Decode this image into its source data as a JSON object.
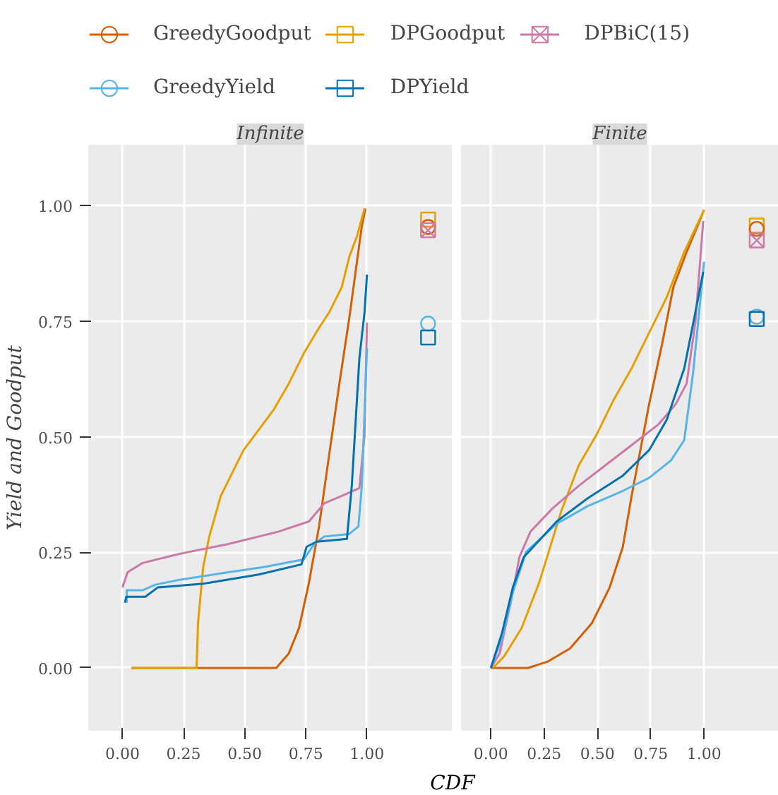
{
  "chart_data": [
    {
      "type": "line",
      "title": "Infinite",
      "xlabel": "CDF",
      "ylabel": "Yield and Goodput",
      "xlim": [
        -0.14,
        1.35
      ],
      "ylim": [
        -0.136,
        1.132
      ],
      "xticks": [
        {
          "value": 0,
          "label": "0.00"
        },
        {
          "value": 0.25,
          "label": "0.25"
        },
        {
          "value": 0.5,
          "label": "0.50"
        },
        {
          "value": 0.75,
          "label": "0.75"
        },
        {
          "value": 1,
          "label": "1.00"
        }
      ],
      "yticks": [
        {
          "value": 0,
          "label": "0.00"
        },
        0.25,
        {
          "value": 0.5,
          "label": "0.50"
        },
        0.75,
        {
          "value": 1,
          "label": "1.00"
        }
      ],
      "grid": true,
      "legend": "top",
      "line_style": "solid",
      "series": [
        {
          "name": "GreedyGoodput",
          "color": "#d55e00",
          "x": [
            0.037,
            0.629,
            0.68,
            0.722,
            0.763,
            0.804,
            0.845,
            0.887,
            0.928,
            0.959,
            0.979,
            0.994
          ],
          "values": [
            0,
            0,
            0.031,
            0.086,
            0.185,
            0.306,
            0.46,
            0.615,
            0.758,
            0.879,
            0.956,
            0.994
          ]
        },
        {
          "name": "DPGoodput",
          "color": "#e69f00",
          "x": [
            0.037,
            0.303,
            0.309,
            0.33,
            0.355,
            0.402,
            0.433,
            0.495,
            0.557,
            0.619,
            0.68,
            0.742,
            0.804,
            0.845,
            0.897,
            0.928,
            0.959,
            0.99
          ],
          "values": [
            0,
            0,
            0.097,
            0.218,
            0.284,
            0.372,
            0.405,
            0.471,
            0.515,
            0.559,
            0.615,
            0.681,
            0.736,
            0.769,
            0.824,
            0.89,
            0.934,
            0.994
          ]
        },
        {
          "name": "DPBiC(15)",
          "color": "#cc79a7",
          "x": [
            0,
            0.021,
            0.082,
            0.227,
            0.433,
            0.639,
            0.763,
            0.825,
            0.887,
            0.969,
            0.99,
            1.0
          ],
          "values": [
            0.174,
            0.207,
            0.227,
            0.246,
            0.268,
            0.295,
            0.317,
            0.356,
            0.37,
            0.389,
            0.504,
            0.747
          ]
        },
        {
          "name": "GreedyYield",
          "color": "#56b4e9",
          "x": [
            0.017,
            0.017,
            0.082,
            0.134,
            0.227,
            0.433,
            0.577,
            0.742,
            0.784,
            0.825,
            0.928,
            0.965,
            0.979,
            1.0
          ],
          "values": [
            0.141,
            0.168,
            0.168,
            0.18,
            0.19,
            0.207,
            0.218,
            0.235,
            0.268,
            0.284,
            0.29,
            0.306,
            0.394,
            0.692
          ]
        },
        {
          "name": "DPYield",
          "color": "#0072b2",
          "x": [
            0.01,
            0.016,
            0.093,
            0.144,
            0.33,
            0.557,
            0.732,
            0.753,
            0.794,
            0.918,
            0.938,
            0.969,
            0.99,
            1.0
          ],
          "values": [
            0.141,
            0.154,
            0.154,
            0.174,
            0.182,
            0.202,
            0.224,
            0.262,
            0.273,
            0.279,
            0.394,
            0.67,
            0.769,
            0.851
          ]
        },
        {
          "type": "scatter",
          "color": "#d55e00",
          "marker": "circle",
          "x": [
            1.25
          ],
          "values": [
            0.954
          ]
        },
        {
          "type": "scatter",
          "color": "#e69f00",
          "marker": "square",
          "x": [
            1.25
          ],
          "values": [
            0.97
          ]
        },
        {
          "type": "scatter",
          "color": "#cc79a7",
          "marker": "cross",
          "x": [
            1.25
          ],
          "values": [
            0.947
          ]
        },
        {
          "type": "scatter",
          "color": "#56b4e9",
          "marker": "circle",
          "x": [
            1.25
          ],
          "values": [
            0.745
          ]
        },
        {
          "type": "scatter",
          "color": "#0072b2",
          "marker": "square",
          "x": [
            1.25
          ],
          "values": [
            0.715
          ]
        }
      ]
    },
    {
      "type": "line",
      "title": "Finite",
      "xlim": [
        -0.14,
        1.35
      ],
      "ylim": [
        -0.136,
        1.132
      ],
      "xticks": [
        {
          "value": 0,
          "label": "0.00"
        },
        {
          "value": 0.25,
          "label": "0.25"
        },
        {
          "value": 0.5,
          "label": "0.50"
        },
        {
          "value": 0.75,
          "label": "0.75"
        },
        {
          "value": 1,
          "label": "1.00"
        }
      ],
      "yticks": [
        {
          "value": 0,
          "label": null
        },
        {
          "value": 0.25,
          "label": null
        },
        {
          "value": 0.5,
          "label": null
        },
        {
          "value": 0.75,
          "label": null
        },
        {
          "value": 1,
          "label": null
        }
      ],
      "grid": true,
      "tick_labels": "x",
      "line_style": "solid",
      "series": [
        {
          "color": "#d55e00",
          "x": [
            0,
            0.175,
            0.268,
            0.371,
            0.474,
            0.557,
            0.619,
            0.66,
            0.701,
            0.742,
            0.804,
            0.856,
            0.918,
            0.969,
            1.0
          ],
          "values": [
            0,
            0,
            0.014,
            0.042,
            0.097,
            0.174,
            0.262,
            0.372,
            0.471,
            0.57,
            0.703,
            0.824,
            0.9,
            0.956,
            0.991
          ]
        },
        {
          "color": "#e69f00",
          "x": [
            0.01,
            0.062,
            0.144,
            0.227,
            0.33,
            0.412,
            0.495,
            0.577,
            0.66,
            0.742,
            0.825,
            0.907,
            1.0
          ],
          "values": [
            0,
            0.025,
            0.086,
            0.185,
            0.339,
            0.438,
            0.504,
            0.581,
            0.648,
            0.725,
            0.802,
            0.9,
            0.991
          ]
        },
        {
          "color": "#cc79a7",
          "x": [
            0,
            0.041,
            0.093,
            0.134,
            0.186,
            0.289,
            0.412,
            0.536,
            0.66,
            0.784,
            0.866,
            0.918,
            0.959,
            0.996
          ],
          "values": [
            0,
            0.031,
            0.141,
            0.24,
            0.295,
            0.345,
            0.394,
            0.438,
            0.482,
            0.526,
            0.57,
            0.615,
            0.747,
            0.967
          ]
        },
        {
          "color": "#56b4e9",
          "x": [
            0,
            0.052,
            0.103,
            0.165,
            0.309,
            0.454,
            0.619,
            0.742,
            0.845,
            0.907,
            0.948,
            0.979,
            1.0
          ],
          "values": [
            0,
            0.064,
            0.163,
            0.251,
            0.312,
            0.35,
            0.383,
            0.411,
            0.449,
            0.493,
            0.637,
            0.78,
            0.879
          ]
        },
        {
          "color": "#0072b2",
          "x": [
            0,
            0.052,
            0.103,
            0.155,
            0.309,
            0.454,
            0.619,
            0.742,
            0.825,
            0.907,
            0.959,
            0.996
          ],
          "values": [
            0,
            0.075,
            0.174,
            0.24,
            0.317,
            0.367,
            0.416,
            0.471,
            0.537,
            0.648,
            0.769,
            0.857
          ]
        },
        {
          "type": "scatter",
          "color": "#e69f00",
          "marker": "square",
          "x": [
            1.247
          ],
          "values": [
            0.957
          ]
        },
        {
          "type": "scatter",
          "color": "#d55e00",
          "marker": "circle",
          "x": [
            1.247
          ],
          "values": [
            0.95
          ]
        },
        {
          "type": "scatter",
          "color": "#cc79a7",
          "marker": "cross",
          "x": [
            1.247
          ],
          "values": [
            0.925
          ]
        },
        {
          "type": "scatter",
          "color": "#56b4e9",
          "marker": "circle",
          "x": [
            1.247
          ],
          "values": [
            0.76
          ]
        },
        {
          "type": "scatter",
          "color": "#0072b2",
          "marker": "square",
          "x": [
            1.247
          ],
          "values": [
            0.755
          ]
        }
      ]
    }
  ]
}
